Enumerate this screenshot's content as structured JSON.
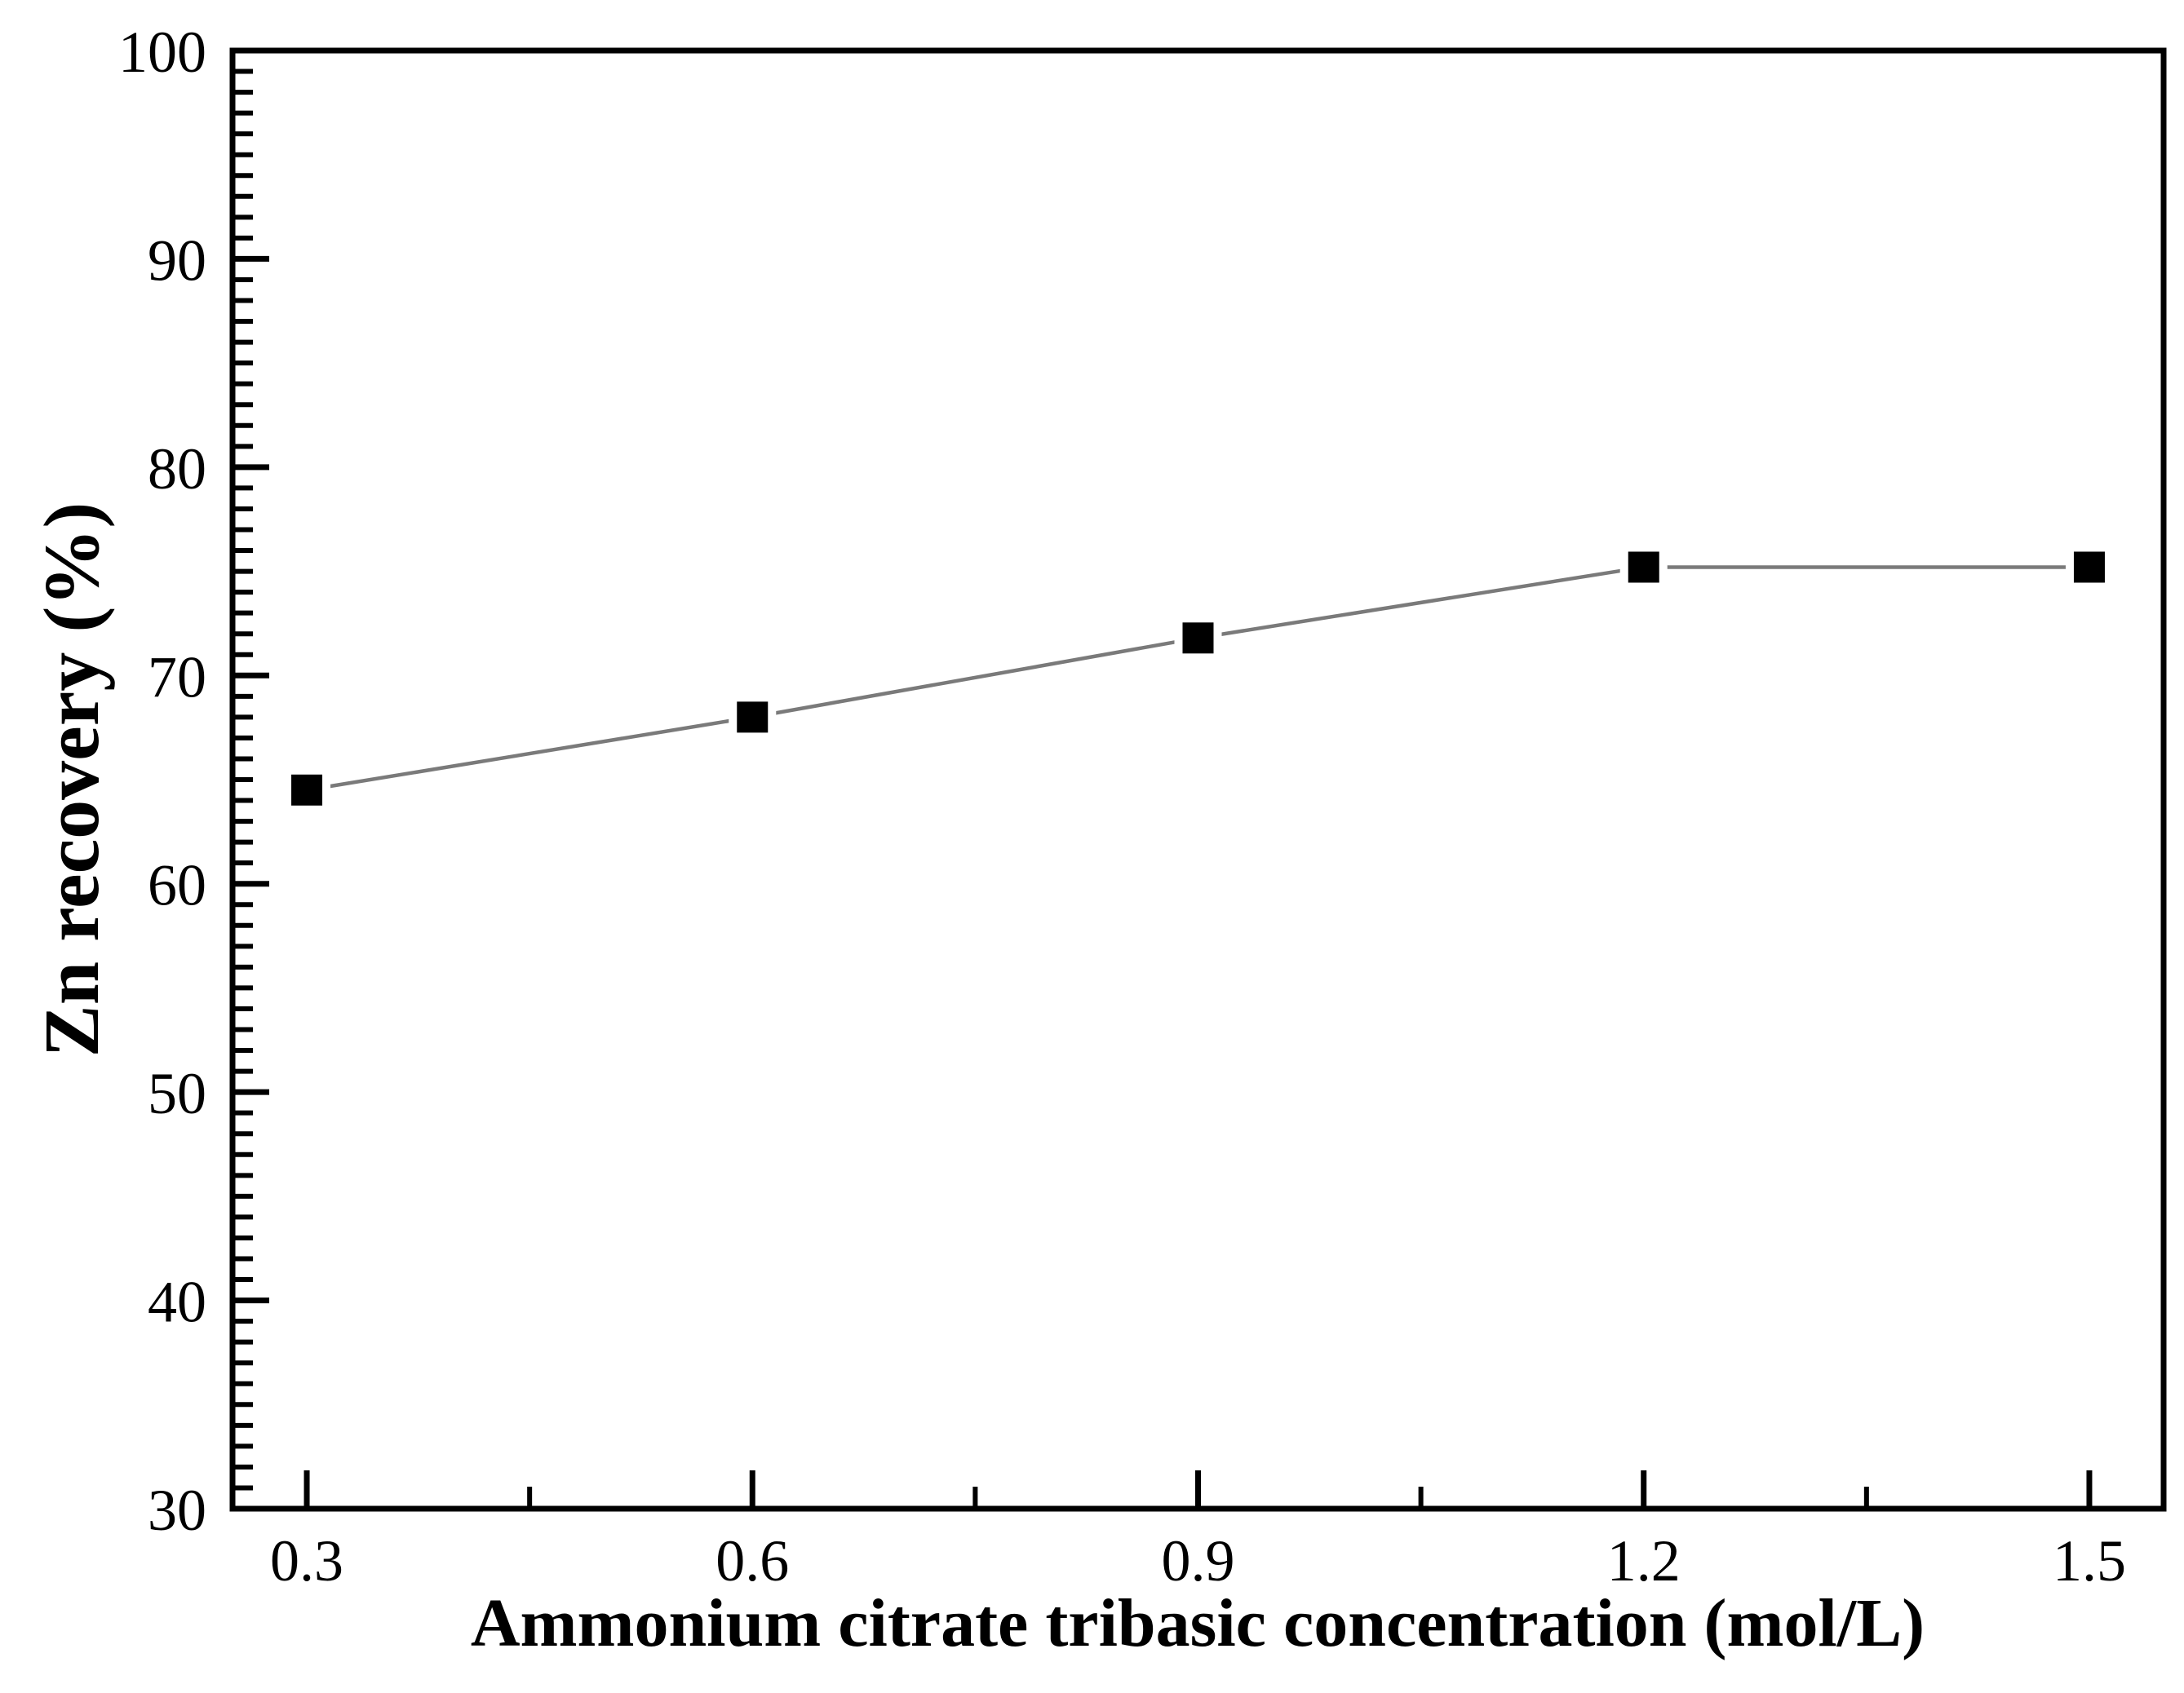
{
  "chart_data": {
    "type": "line",
    "title": "",
    "xlabel": "Ammonium citrate tribasic concentration (mol/L)",
    "ylabel": "Zn recovery (%)",
    "x": [
      0.3,
      0.6,
      0.9,
      1.2,
      1.5
    ],
    "series": [
      {
        "name": "Zn recovery",
        "values": [
          64.5,
          68.0,
          71.8,
          75.2,
          75.2
        ]
      }
    ],
    "xlim": [
      0.25,
      1.55
    ],
    "ylim": [
      30,
      100
    ],
    "x_major_ticks": [
      0.3,
      0.6,
      0.9,
      1.2,
      1.5
    ],
    "x_tick_labels": [
      "0.3",
      "0.6",
      "0.9",
      "1.2",
      "1.5"
    ],
    "x_minor_ticks": [
      0.45,
      0.75,
      1.05,
      1.35
    ],
    "y_major_ticks": [
      30,
      40,
      50,
      60,
      70,
      80,
      90,
      100
    ],
    "y_tick_labels": [
      "30",
      "40",
      "50",
      "60",
      "70",
      "80",
      "90",
      "100"
    ],
    "y_minor_tick_step": 1,
    "grid": false,
    "legend": "none",
    "marker": "filled-square",
    "marker_color": "#000000",
    "line_color": "#7a7a7a",
    "axis_color": "#000000",
    "background": "#ffffff"
  }
}
